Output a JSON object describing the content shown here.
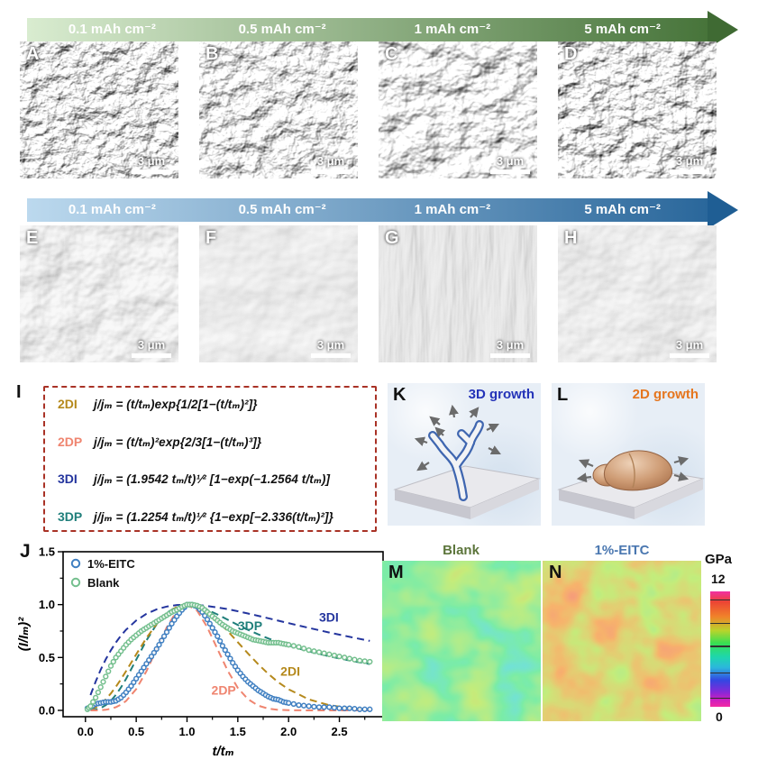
{
  "arrows": [
    {
      "labels": [
        "0.1 mAh cm⁻²",
        "0.5 mAh cm⁻²",
        "1 mAh cm⁻²",
        "5 mAh cm⁻²"
      ],
      "start": "#d9ecd0",
      "end": "#47743a",
      "head": "#3f6a33"
    },
    {
      "labels": [
        "0.1 mAh cm⁻²",
        "0.5 mAh cm⁻²",
        "1 mAh cm⁻²",
        "5 mAh cm⁻²"
      ],
      "start": "#bcd9ee",
      "end": "#2a679b",
      "head": "#1f5e94"
    }
  ],
  "sem_rows": [
    {
      "panels": [
        {
          "letter": "A",
          "scale": "3 μm"
        },
        {
          "letter": "B",
          "scale": "3 μm"
        },
        {
          "letter": "C",
          "scale": "3 μm"
        },
        {
          "letter": "D",
          "scale": "3 μm"
        }
      ]
    },
    {
      "panels": [
        {
          "letter": "E",
          "scale": "3 μm"
        },
        {
          "letter": "F",
          "scale": "3 μm"
        },
        {
          "letter": "G",
          "scale": "3 μm"
        },
        {
          "letter": "H",
          "scale": "3 μm"
        }
      ]
    }
  ],
  "equations": {
    "panel_label": "I",
    "border_color": "#a93226",
    "items": [
      {
        "tag": "2DI",
        "color": "#b5891c",
        "formula": "j/jₘ = (t/tₘ)exp{1/2[1−(t/tₘ)²]}"
      },
      {
        "tag": "2DP",
        "color": "#ef8570",
        "formula": "j/jₘ = (t/tₘ)²exp{2/3[1−(t/tₘ)³]}"
      },
      {
        "tag": "3DI",
        "color": "#24359e",
        "formula": "j/jₘ = (1.9542 tₘ/t)¹⁄² [1−exp(−1.2564 t/tₘ)]"
      },
      {
        "tag": "3DP",
        "color": "#207f7b",
        "formula": "j/jₘ = (1.2254 tₘ/t)¹⁄² {1−exp[−2.336(t/tₘ)²]}"
      }
    ]
  },
  "growth_panels": [
    {
      "label": "K",
      "title": "3D growth",
      "title_color": "#2433b8"
    },
    {
      "label": "L",
      "title": "2D growth",
      "title_color": "#e5761e"
    }
  ],
  "chart_data": {
    "type": "line+scatter",
    "panel_label": "J",
    "xlabel": "t/tₘ",
    "ylabel": "(I/Iₘ)²",
    "xlim": [
      -0.22,
      2.93
    ],
    "ylim": [
      -0.06,
      1.5
    ],
    "xticks": [
      0.0,
      0.5,
      1.0,
      1.5,
      2.0,
      2.5
    ],
    "yticks": [
      0.0,
      0.5,
      1.0,
      1.5
    ],
    "grid": false,
    "legend_position": "top-left",
    "legend": [
      {
        "name": "1%-EITC",
        "color": "#3f7fc1"
      },
      {
        "name": "Blank",
        "color": "#74bf8e"
      }
    ],
    "model_x": [
      0.05,
      0.1,
      0.15,
      0.2,
      0.25,
      0.3,
      0.35,
      0.4,
      0.5,
      0.6,
      0.7,
      0.8,
      0.9,
      1.0,
      1.1,
      1.2,
      1.3,
      1.4,
      1.5,
      1.6,
      1.7,
      1.8,
      1.9,
      2.0,
      2.2,
      2.4,
      2.6,
      2.8
    ],
    "models": [
      {
        "name": "3DI",
        "color": "#24359e",
        "label_pos": [
          2.3,
          0.84
        ],
        "y": [
          0.145,
          0.272,
          0.384,
          0.482,
          0.568,
          0.642,
          0.707,
          0.763,
          0.85,
          0.913,
          0.955,
          0.982,
          0.996,
          1.0,
          0.997,
          0.987,
          0.973,
          0.957,
          0.937,
          0.916,
          0.894,
          0.871,
          0.848,
          0.825,
          0.78,
          0.736,
          0.695,
          0.657
        ]
      },
      {
        "name": "3DP",
        "color": "#207f7b",
        "label_pos": [
          1.5,
          0.76
        ],
        "y": [
          0.001,
          0.007,
          0.021,
          0.049,
          0.09,
          0.147,
          0.217,
          0.298,
          0.479,
          0.66,
          0.813,
          0.922,
          0.982,
          1.0,
          0.986,
          0.952,
          0.907,
          0.857,
          0.808,
          0.762,
          0.719,
          0.68,
          0.645,
          0.613,
          0.557,
          0.511,
          0.471,
          0.438
        ]
      },
      {
        "name": "2DI",
        "color": "#b5891c",
        "label_pos": [
          1.92,
          0.33
        ],
        "y": [
          0.007,
          0.027,
          0.06,
          0.104,
          0.16,
          0.224,
          0.295,
          0.371,
          0.529,
          0.683,
          0.816,
          0.917,
          0.979,
          1.0,
          0.981,
          0.927,
          0.848,
          0.75,
          0.645,
          0.538,
          0.437,
          0.345,
          0.265,
          0.199,
          0.104,
          0.049,
          0.021,
          0.008
        ]
      },
      {
        "name": "2DP",
        "color": "#ef8570",
        "label_pos": [
          1.24,
          0.15
        ],
        "y": [
          0.0,
          0.0,
          0.002,
          0.006,
          0.015,
          0.03,
          0.054,
          0.089,
          0.201,
          0.369,
          0.577,
          0.785,
          0.942,
          1.0,
          0.942,
          0.786,
          0.579,
          0.376,
          0.213,
          0.106,
          0.045,
          0.017,
          0.005,
          0.001,
          0.0,
          0.0,
          0.0,
          0.0
        ]
      }
    ],
    "series_x": [
      0.02,
      0.05,
      0.1,
      0.15,
      0.2,
      0.25,
      0.3,
      0.35,
      0.4,
      0.45,
      0.5,
      0.55,
      0.6,
      0.65,
      0.7,
      0.75,
      0.8,
      0.85,
      0.9,
      0.95,
      1.0,
      1.05,
      1.1,
      1.15,
      1.2,
      1.25,
      1.3,
      1.35,
      1.4,
      1.45,
      1.5,
      1.55,
      1.6,
      1.65,
      1.7,
      1.75,
      1.8,
      1.85,
      1.9,
      1.95,
      2.0,
      2.1,
      2.2,
      2.3,
      2.4,
      2.5,
      2.6,
      2.7,
      2.8
    ],
    "series": [
      {
        "name": "1%-EITC",
        "color": "#3f7fc1",
        "y": [
          0.02,
          0.03,
          0.06,
          0.07,
          0.08,
          0.08,
          0.09,
          0.12,
          0.17,
          0.23,
          0.3,
          0.37,
          0.44,
          0.51,
          0.58,
          0.66,
          0.74,
          0.82,
          0.89,
          0.95,
          1.0,
          1.0,
          0.98,
          0.93,
          0.86,
          0.78,
          0.7,
          0.61,
          0.53,
          0.45,
          0.38,
          0.32,
          0.27,
          0.23,
          0.19,
          0.16,
          0.13,
          0.11,
          0.1,
          0.08,
          0.07,
          0.05,
          0.04,
          0.03,
          0.03,
          0.02,
          0.02,
          0.01,
          0.01
        ]
      },
      {
        "name": "Blank",
        "color": "#74bf8e",
        "y": [
          0.01,
          0.04,
          0.12,
          0.22,
          0.32,
          0.42,
          0.5,
          0.56,
          0.62,
          0.67,
          0.71,
          0.75,
          0.78,
          0.81,
          0.84,
          0.87,
          0.9,
          0.93,
          0.95,
          0.98,
          1.0,
          1.0,
          0.99,
          0.97,
          0.93,
          0.89,
          0.85,
          0.81,
          0.78,
          0.75,
          0.73,
          0.71,
          0.69,
          0.67,
          0.66,
          0.65,
          0.64,
          0.64,
          0.64,
          0.63,
          0.62,
          0.6,
          0.57,
          0.55,
          0.53,
          0.51,
          0.49,
          0.47,
          0.46
        ]
      }
    ]
  },
  "maps": {
    "m": {
      "label": "M",
      "title": "Blank",
      "title_color": "#5c753b"
    },
    "n": {
      "label": "N",
      "title": "1%-EITC",
      "title_color": "#4a77b0"
    },
    "colorbar": {
      "unit": "GPa",
      "max": "12",
      "min": "0"
    }
  }
}
